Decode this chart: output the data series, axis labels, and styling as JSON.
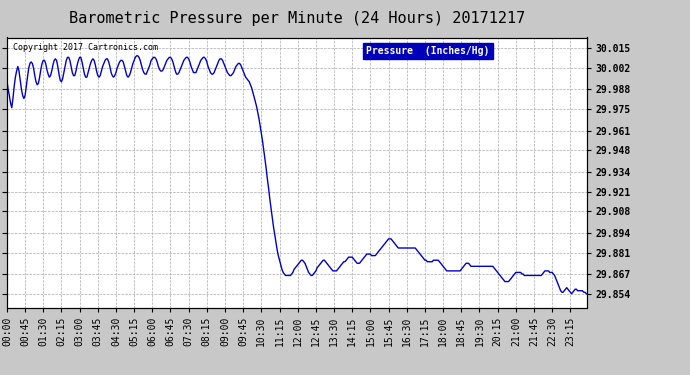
{
  "title": "Barometric Pressure per Minute (24 Hours) 20171217",
  "copyright_text": "Copyright 2017 Cartronics.com",
  "legend_label": "Pressure  (Inches/Hg)",
  "legend_bg": "#0000bb",
  "legend_text_color": "#ffffff",
  "line_color": "#0000cc",
  "background_color": "#c8c8c8",
  "plot_bg_color": "#ffffff",
  "grid_color": "#aaaaaa",
  "yticks": [
    29.854,
    29.867,
    29.881,
    29.894,
    29.908,
    29.921,
    29.934,
    29.948,
    29.961,
    29.975,
    29.988,
    30.002,
    30.015
  ],
  "ylim": [
    29.845,
    30.022
  ],
  "title_fontsize": 11,
  "tick_fontsize": 7,
  "line_width": 1.0,
  "pressure_data": [
    [
      0,
      29.994
    ],
    [
      3,
      29.988
    ],
    [
      6,
      29.984
    ],
    [
      9,
      29.979
    ],
    [
      12,
      29.976
    ],
    [
      15,
      29.982
    ],
    [
      18,
      29.99
    ],
    [
      21,
      29.996
    ],
    [
      24,
      30.0
    ],
    [
      27,
      30.003
    ],
    [
      30,
      30.0
    ],
    [
      33,
      29.994
    ],
    [
      36,
      29.988
    ],
    [
      39,
      29.984
    ],
    [
      42,
      29.982
    ],
    [
      45,
      29.984
    ],
    [
      48,
      29.99
    ],
    [
      51,
      29.996
    ],
    [
      54,
      30.002
    ],
    [
      57,
      30.005
    ],
    [
      60,
      30.006
    ],
    [
      63,
      30.005
    ],
    [
      66,
      30.002
    ],
    [
      69,
      29.997
    ],
    [
      72,
      29.993
    ],
    [
      75,
      29.991
    ],
    [
      78,
      29.992
    ],
    [
      81,
      29.996
    ],
    [
      84,
      30.001
    ],
    [
      87,
      30.005
    ],
    [
      90,
      30.007
    ],
    [
      93,
      30.007
    ],
    [
      96,
      30.005
    ],
    [
      99,
      30.001
    ],
    [
      102,
      29.998
    ],
    [
      105,
      29.996
    ],
    [
      108,
      29.997
    ],
    [
      111,
      30.0
    ],
    [
      114,
      30.004
    ],
    [
      117,
      30.007
    ],
    [
      120,
      30.008
    ],
    [
      123,
      30.007
    ],
    [
      126,
      30.003
    ],
    [
      129,
      29.998
    ],
    [
      132,
      29.994
    ],
    [
      135,
      29.993
    ],
    [
      138,
      29.995
    ],
    [
      141,
      29.999
    ],
    [
      144,
      30.003
    ],
    [
      147,
      30.007
    ],
    [
      150,
      30.009
    ],
    [
      153,
      30.009
    ],
    [
      156,
      30.007
    ],
    [
      159,
      30.003
    ],
    [
      162,
      29.999
    ],
    [
      165,
      29.997
    ],
    [
      168,
      29.997
    ],
    [
      171,
      30.0
    ],
    [
      174,
      30.004
    ],
    [
      177,
      30.007
    ],
    [
      180,
      30.009
    ],
    [
      183,
      30.009
    ],
    [
      186,
      30.006
    ],
    [
      189,
      30.002
    ],
    [
      192,
      29.998
    ],
    [
      195,
      29.996
    ],
    [
      198,
      29.996
    ],
    [
      201,
      29.999
    ],
    [
      204,
      30.002
    ],
    [
      207,
      30.005
    ],
    [
      210,
      30.007
    ],
    [
      213,
      30.008
    ],
    [
      216,
      30.007
    ],
    [
      219,
      30.004
    ],
    [
      222,
      30.0
    ],
    [
      225,
      29.997
    ],
    [
      228,
      29.996
    ],
    [
      231,
      29.997
    ],
    [
      234,
      30.0
    ],
    [
      237,
      30.003
    ],
    [
      240,
      30.005
    ],
    [
      243,
      30.007
    ],
    [
      246,
      30.008
    ],
    [
      249,
      30.008
    ],
    [
      252,
      30.006
    ],
    [
      255,
      30.003
    ],
    [
      258,
      29.999
    ],
    [
      261,
      29.997
    ],
    [
      264,
      29.996
    ],
    [
      267,
      29.997
    ],
    [
      270,
      29.999
    ],
    [
      273,
      30.002
    ],
    [
      276,
      30.004
    ],
    [
      279,
      30.006
    ],
    [
      282,
      30.007
    ],
    [
      285,
      30.007
    ],
    [
      288,
      30.006
    ],
    [
      291,
      30.003
    ],
    [
      294,
      30.0
    ],
    [
      297,
      29.997
    ],
    [
      300,
      29.996
    ],
    [
      303,
      29.997
    ],
    [
      306,
      29.999
    ],
    [
      309,
      30.002
    ],
    [
      312,
      30.005
    ],
    [
      315,
      30.007
    ],
    [
      318,
      30.009
    ],
    [
      321,
      30.01
    ],
    [
      324,
      30.01
    ],
    [
      327,
      30.009
    ],
    [
      330,
      30.007
    ],
    [
      333,
      30.004
    ],
    [
      336,
      30.001
    ],
    [
      339,
      29.999
    ],
    [
      342,
      29.998
    ],
    [
      345,
      29.998
    ],
    [
      348,
      30.0
    ],
    [
      351,
      30.002
    ],
    [
      354,
      30.004
    ],
    [
      357,
      30.007
    ],
    [
      360,
      30.008
    ],
    [
      363,
      30.009
    ],
    [
      366,
      30.009
    ],
    [
      369,
      30.008
    ],
    [
      372,
      30.006
    ],
    [
      375,
      30.003
    ],
    [
      378,
      30.001
    ],
    [
      381,
      30.0
    ],
    [
      384,
      30.0
    ],
    [
      387,
      30.001
    ],
    [
      390,
      30.003
    ],
    [
      393,
      30.005
    ],
    [
      396,
      30.007
    ],
    [
      399,
      30.008
    ],
    [
      402,
      30.009
    ],
    [
      405,
      30.009
    ],
    [
      408,
      30.008
    ],
    [
      411,
      30.006
    ],
    [
      414,
      30.003
    ],
    [
      417,
      30.0
    ],
    [
      420,
      29.998
    ],
    [
      423,
      29.998
    ],
    [
      426,
      29.999
    ],
    [
      429,
      30.001
    ],
    [
      432,
      30.003
    ],
    [
      435,
      30.005
    ],
    [
      438,
      30.007
    ],
    [
      441,
      30.008
    ],
    [
      444,
      30.009
    ],
    [
      447,
      30.009
    ],
    [
      450,
      30.008
    ],
    [
      453,
      30.006
    ],
    [
      456,
      30.003
    ],
    [
      459,
      30.001
    ],
    [
      462,
      29.999
    ],
    [
      465,
      29.999
    ],
    [
      468,
      29.999
    ],
    [
      471,
      30.001
    ],
    [
      474,
      30.003
    ],
    [
      477,
      30.005
    ],
    [
      480,
      30.007
    ],
    [
      483,
      30.008
    ],
    [
      486,
      30.009
    ],
    [
      489,
      30.009
    ],
    [
      492,
      30.008
    ],
    [
      495,
      30.006
    ],
    [
      498,
      30.003
    ],
    [
      501,
      30.001
    ],
    [
      504,
      29.999
    ],
    [
      507,
      29.998
    ],
    [
      510,
      29.998
    ],
    [
      513,
      29.999
    ],
    [
      516,
      30.001
    ],
    [
      519,
      30.003
    ],
    [
      522,
      30.005
    ],
    [
      525,
      30.007
    ],
    [
      528,
      30.008
    ],
    [
      531,
      30.008
    ],
    [
      534,
      30.007
    ],
    [
      537,
      30.005
    ],
    [
      540,
      30.003
    ],
    [
      543,
      30.001
    ],
    [
      546,
      29.999
    ],
    [
      549,
      29.998
    ],
    [
      552,
      29.997
    ],
    [
      555,
      29.997
    ],
    [
      558,
      29.998
    ],
    [
      561,
      29.999
    ],
    [
      564,
      30.001
    ],
    [
      567,
      30.003
    ],
    [
      570,
      30.004
    ],
    [
      573,
      30.005
    ],
    [
      576,
      30.005
    ],
    [
      579,
      30.004
    ],
    [
      582,
      30.002
    ],
    [
      585,
      30.0
    ],
    [
      588,
      29.998
    ],
    [
      591,
      29.996
    ],
    [
      594,
      29.995
    ],
    [
      597,
      29.994
    ],
    [
      600,
      29.993
    ],
    [
      603,
      29.991
    ],
    [
      606,
      29.989
    ],
    [
      609,
      29.986
    ],
    [
      612,
      29.983
    ],
    [
      615,
      29.98
    ],
    [
      618,
      29.977
    ],
    [
      621,
      29.973
    ],
    [
      624,
      29.969
    ],
    [
      627,
      29.964
    ],
    [
      630,
      29.959
    ],
    [
      633,
      29.954
    ],
    [
      636,
      29.948
    ],
    [
      639,
      29.942
    ],
    [
      642,
      29.936
    ],
    [
      645,
      29.929
    ],
    [
      648,
      29.923
    ],
    [
      651,
      29.916
    ],
    [
      654,
      29.91
    ],
    [
      657,
      29.904
    ],
    [
      660,
      29.898
    ],
    [
      663,
      29.893
    ],
    [
      666,
      29.888
    ],
    [
      669,
      29.883
    ],
    [
      672,
      29.879
    ],
    [
      675,
      29.876
    ],
    [
      678,
      29.873
    ],
    [
      681,
      29.87
    ],
    [
      684,
      29.868
    ],
    [
      687,
      29.867
    ],
    [
      690,
      29.866
    ],
    [
      693,
      29.866
    ],
    [
      696,
      29.866
    ],
    [
      699,
      29.866
    ],
    [
      702,
      29.866
    ],
    [
      705,
      29.867
    ],
    [
      708,
      29.868
    ],
    [
      711,
      29.87
    ],
    [
      714,
      29.871
    ],
    [
      717,
      29.872
    ],
    [
      720,
      29.873
    ],
    [
      723,
      29.874
    ],
    [
      726,
      29.875
    ],
    [
      729,
      29.876
    ],
    [
      732,
      29.876
    ],
    [
      735,
      29.875
    ],
    [
      738,
      29.874
    ],
    [
      741,
      29.872
    ],
    [
      744,
      29.87
    ],
    [
      747,
      29.868
    ],
    [
      750,
      29.867
    ],
    [
      753,
      29.866
    ],
    [
      756,
      29.866
    ],
    [
      759,
      29.867
    ],
    [
      762,
      29.868
    ],
    [
      765,
      29.869
    ],
    [
      768,
      29.871
    ],
    [
      771,
      29.872
    ],
    [
      774,
      29.873
    ],
    [
      777,
      29.874
    ],
    [
      780,
      29.875
    ],
    [
      783,
      29.876
    ],
    [
      786,
      29.876
    ],
    [
      789,
      29.875
    ],
    [
      792,
      29.874
    ],
    [
      795,
      29.873
    ],
    [
      798,
      29.872
    ],
    [
      801,
      29.871
    ],
    [
      804,
      29.87
    ],
    [
      807,
      29.869
    ],
    [
      810,
      29.869
    ],
    [
      813,
      29.869
    ],
    [
      816,
      29.869
    ],
    [
      819,
      29.87
    ],
    [
      822,
      29.871
    ],
    [
      825,
      29.872
    ],
    [
      828,
      29.873
    ],
    [
      831,
      29.874
    ],
    [
      834,
      29.875
    ],
    [
      837,
      29.875
    ],
    [
      840,
      29.876
    ],
    [
      843,
      29.877
    ],
    [
      846,
      29.878
    ],
    [
      849,
      29.878
    ],
    [
      852,
      29.878
    ],
    [
      855,
      29.878
    ],
    [
      858,
      29.877
    ],
    [
      861,
      29.876
    ],
    [
      864,
      29.875
    ],
    [
      867,
      29.874
    ],
    [
      870,
      29.874
    ],
    [
      873,
      29.874
    ],
    [
      876,
      29.875
    ],
    [
      879,
      29.876
    ],
    [
      882,
      29.877
    ],
    [
      885,
      29.878
    ],
    [
      888,
      29.879
    ],
    [
      891,
      29.88
    ],
    [
      894,
      29.88
    ],
    [
      897,
      29.88
    ],
    [
      900,
      29.88
    ],
    [
      903,
      29.879
    ],
    [
      906,
      29.879
    ],
    [
      909,
      29.879
    ],
    [
      912,
      29.879
    ],
    [
      915,
      29.88
    ],
    [
      918,
      29.881
    ],
    [
      921,
      29.882
    ],
    [
      924,
      29.883
    ],
    [
      927,
      29.884
    ],
    [
      930,
      29.885
    ],
    [
      933,
      29.886
    ],
    [
      936,
      29.887
    ],
    [
      939,
      29.888
    ],
    [
      942,
      29.889
    ],
    [
      945,
      29.89
    ],
    [
      948,
      29.89
    ],
    [
      951,
      29.89
    ],
    [
      954,
      29.889
    ],
    [
      957,
      29.888
    ],
    [
      960,
      29.887
    ],
    [
      963,
      29.886
    ],
    [
      966,
      29.885
    ],
    [
      969,
      29.884
    ],
    [
      972,
      29.884
    ],
    [
      975,
      29.884
    ],
    [
      978,
      29.884
    ],
    [
      981,
      29.884
    ],
    [
      984,
      29.884
    ],
    [
      987,
      29.884
    ],
    [
      990,
      29.884
    ],
    [
      993,
      29.884
    ],
    [
      996,
      29.884
    ],
    [
      999,
      29.884
    ],
    [
      1002,
      29.884
    ],
    [
      1005,
      29.884
    ],
    [
      1008,
      29.884
    ],
    [
      1011,
      29.884
    ],
    [
      1014,
      29.883
    ],
    [
      1017,
      29.882
    ],
    [
      1020,
      29.881
    ],
    [
      1023,
      29.88
    ],
    [
      1026,
      29.879
    ],
    [
      1029,
      29.878
    ],
    [
      1032,
      29.877
    ],
    [
      1035,
      29.876
    ],
    [
      1038,
      29.876
    ],
    [
      1041,
      29.875
    ],
    [
      1044,
      29.875
    ],
    [
      1047,
      29.875
    ],
    [
      1050,
      29.875
    ],
    [
      1053,
      29.875
    ],
    [
      1056,
      29.876
    ],
    [
      1059,
      29.876
    ],
    [
      1062,
      29.876
    ],
    [
      1065,
      29.876
    ],
    [
      1068,
      29.876
    ],
    [
      1071,
      29.875
    ],
    [
      1074,
      29.874
    ],
    [
      1077,
      29.873
    ],
    [
      1080,
      29.872
    ],
    [
      1083,
      29.871
    ],
    [
      1086,
      29.87
    ],
    [
      1089,
      29.869
    ],
    [
      1092,
      29.869
    ],
    [
      1095,
      29.869
    ],
    [
      1098,
      29.869
    ],
    [
      1101,
      29.869
    ],
    [
      1104,
      29.869
    ],
    [
      1107,
      29.869
    ],
    [
      1110,
      29.869
    ],
    [
      1113,
      29.869
    ],
    [
      1116,
      29.869
    ],
    [
      1119,
      29.869
    ],
    [
      1122,
      29.869
    ],
    [
      1125,
      29.87
    ],
    [
      1128,
      29.871
    ],
    [
      1131,
      29.872
    ],
    [
      1134,
      29.873
    ],
    [
      1137,
      29.874
    ],
    [
      1140,
      29.874
    ],
    [
      1143,
      29.874
    ],
    [
      1146,
      29.873
    ],
    [
      1149,
      29.872
    ],
    [
      1152,
      29.872
    ],
    [
      1155,
      29.872
    ],
    [
      1158,
      29.872
    ],
    [
      1161,
      29.872
    ],
    [
      1164,
      29.872
    ],
    [
      1167,
      29.872
    ],
    [
      1170,
      29.872
    ],
    [
      1173,
      29.872
    ],
    [
      1176,
      29.872
    ],
    [
      1179,
      29.872
    ],
    [
      1182,
      29.872
    ],
    [
      1185,
      29.872
    ],
    [
      1188,
      29.872
    ],
    [
      1191,
      29.872
    ],
    [
      1194,
      29.872
    ],
    [
      1197,
      29.872
    ],
    [
      1200,
      29.872
    ],
    [
      1203,
      29.872
    ],
    [
      1206,
      29.871
    ],
    [
      1209,
      29.87
    ],
    [
      1212,
      29.869
    ],
    [
      1215,
      29.868
    ],
    [
      1218,
      29.867
    ],
    [
      1221,
      29.866
    ],
    [
      1224,
      29.865
    ],
    [
      1227,
      29.864
    ],
    [
      1230,
      29.863
    ],
    [
      1233,
      29.862
    ],
    [
      1236,
      29.862
    ],
    [
      1239,
      29.862
    ],
    [
      1242,
      29.862
    ],
    [
      1245,
      29.863
    ],
    [
      1248,
      29.864
    ],
    [
      1251,
      29.865
    ],
    [
      1254,
      29.866
    ],
    [
      1257,
      29.867
    ],
    [
      1260,
      29.868
    ],
    [
      1263,
      29.868
    ],
    [
      1266,
      29.868
    ],
    [
      1269,
      29.868
    ],
    [
      1272,
      29.868
    ],
    [
      1275,
      29.867
    ],
    [
      1278,
      29.867
    ],
    [
      1281,
      29.866
    ],
    [
      1284,
      29.866
    ],
    [
      1287,
      29.866
    ],
    [
      1290,
      29.866
    ],
    [
      1293,
      29.866
    ],
    [
      1296,
      29.866
    ],
    [
      1299,
      29.866
    ],
    [
      1302,
      29.866
    ],
    [
      1305,
      29.866
    ],
    [
      1308,
      29.866
    ],
    [
      1311,
      29.866
    ],
    [
      1314,
      29.866
    ],
    [
      1317,
      29.866
    ],
    [
      1320,
      29.866
    ],
    [
      1323,
      29.866
    ],
    [
      1326,
      29.867
    ],
    [
      1329,
      29.868
    ],
    [
      1332,
      29.869
    ],
    [
      1335,
      29.869
    ],
    [
      1338,
      29.869
    ],
    [
      1341,
      29.869
    ],
    [
      1344,
      29.868
    ],
    [
      1347,
      29.868
    ],
    [
      1350,
      29.868
    ],
    [
      1353,
      29.867
    ],
    [
      1356,
      29.866
    ],
    [
      1359,
      29.864
    ],
    [
      1362,
      29.862
    ],
    [
      1365,
      29.86
    ],
    [
      1368,
      29.858
    ],
    [
      1371,
      29.856
    ],
    [
      1374,
      29.855
    ],
    [
      1377,
      29.855
    ],
    [
      1380,
      29.856
    ],
    [
      1383,
      29.857
    ],
    [
      1386,
      29.858
    ],
    [
      1389,
      29.857
    ],
    [
      1392,
      29.856
    ],
    [
      1395,
      29.855
    ],
    [
      1398,
      29.854
    ],
    [
      1401,
      29.855
    ],
    [
      1404,
      29.856
    ],
    [
      1407,
      29.857
    ],
    [
      1410,
      29.857
    ],
    [
      1413,
      29.856
    ],
    [
      1416,
      29.856
    ],
    [
      1419,
      29.856
    ],
    [
      1422,
      29.856
    ],
    [
      1425,
      29.856
    ],
    [
      1428,
      29.855
    ],
    [
      1431,
      29.855
    ],
    [
      1435,
      29.854
    ]
  ]
}
